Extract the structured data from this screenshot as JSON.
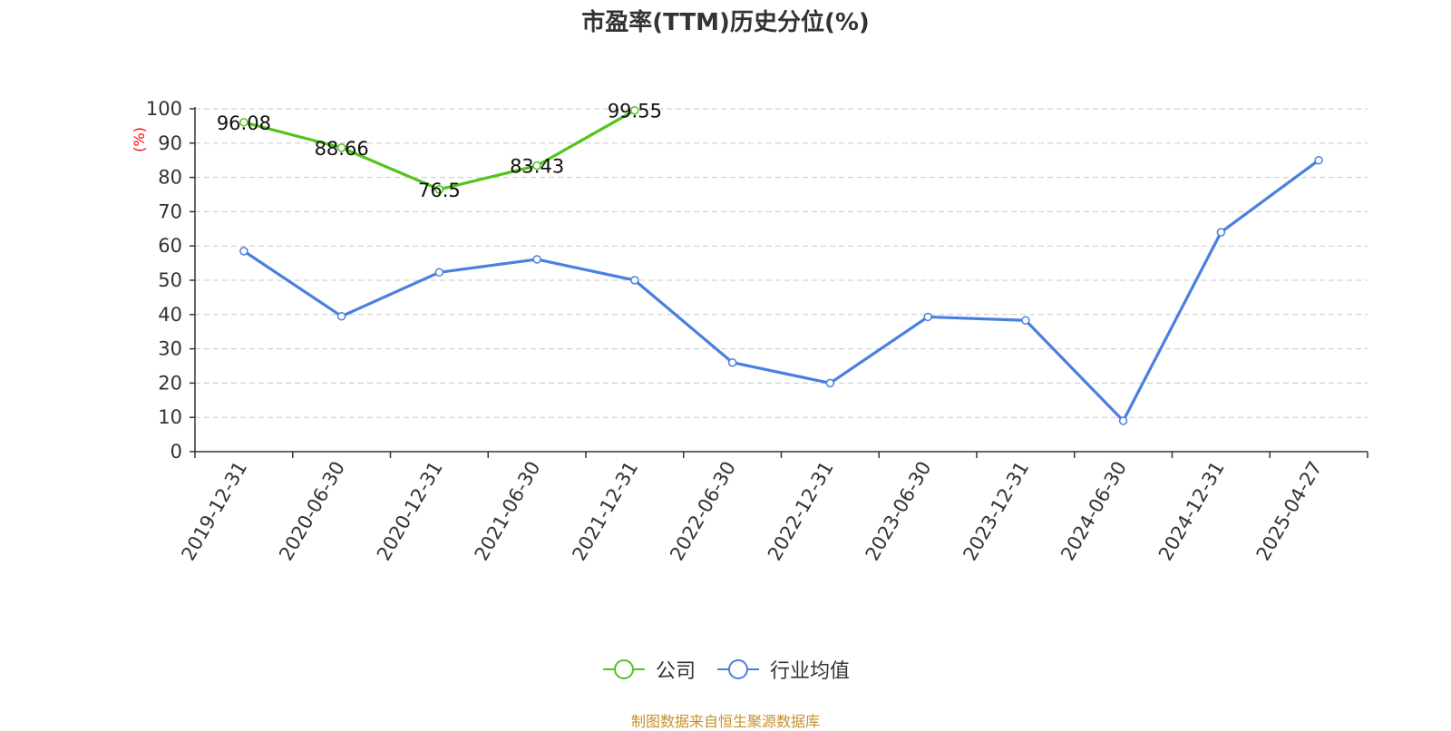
{
  "title": "市盈率(TTM)历史分位(%)",
  "source": "制图数据来自恒生聚源数据库",
  "colors": {
    "company": "#52c41a",
    "industry": "#4a7fe0",
    "source": "#c8902c",
    "axis_label": "#ff0000",
    "grid": "#c8c8c8"
  },
  "chart_data": {
    "type": "line",
    "title": "市盈率(TTM)历史分位(%)",
    "ylabel": "(%)",
    "ylim": [
      0,
      100
    ],
    "yticks": [
      "0",
      "10",
      "20",
      "30",
      "40",
      "50",
      "60",
      "70",
      "80",
      "90",
      "100"
    ],
    "grid": true,
    "legend_position": "bottom",
    "categories": [
      "2019-12-31",
      "2020-06-30",
      "2020-12-31",
      "2021-06-30",
      "2021-12-31",
      "2022-06-30",
      "2022-12-31",
      "2023-06-30",
      "2023-12-31",
      "2024-06-30",
      "2024-12-31",
      "2025-04-27"
    ],
    "series": [
      {
        "name": "公司",
        "values": [
          96.08,
          88.66,
          76.5,
          83.43,
          99.55,
          null,
          null,
          null,
          null,
          null,
          null,
          null
        ],
        "labels": [
          "96.08",
          "88.66",
          "76.5",
          "83.43",
          "99.55"
        ]
      },
      {
        "name": "行业均值",
        "values": [
          58.5,
          39.5,
          52.3,
          56.1,
          50.0,
          26.0,
          20.0,
          39.3,
          38.3,
          9.0,
          64.0,
          85.0
        ]
      }
    ]
  }
}
